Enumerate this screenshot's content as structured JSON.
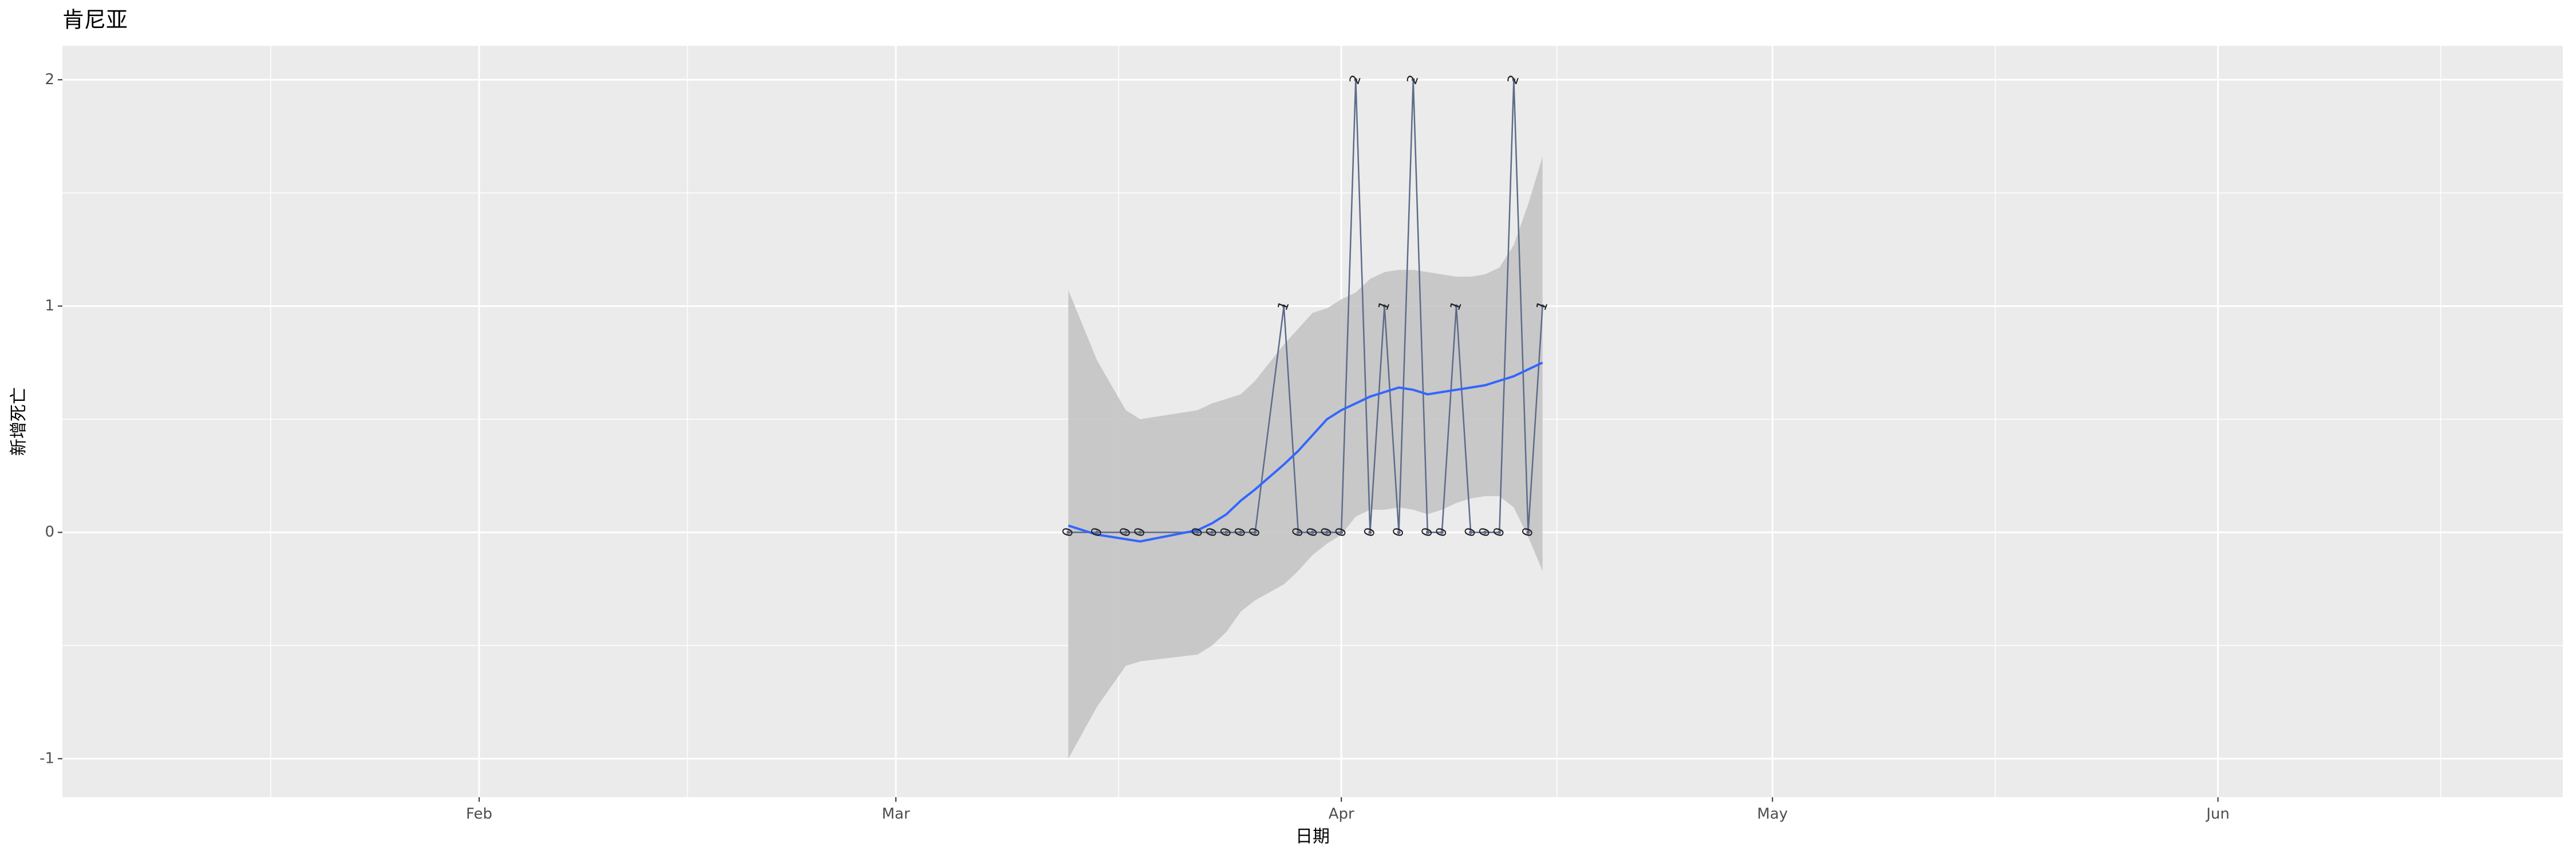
{
  "chart_data": {
    "type": "line",
    "title": "肯尼亚",
    "x_label": "日期",
    "y_label": "新增死亡",
    "x": [
      "03-13",
      "03-15",
      "03-17",
      "03-18",
      "03-22",
      "03-23",
      "03-24",
      "03-25",
      "03-26",
      "03-28",
      "03-29",
      "03-30",
      "03-31",
      "04-01",
      "04-02",
      "04-03",
      "04-04",
      "04-05",
      "04-06",
      "04-07",
      "04-08",
      "04-09",
      "04-10",
      "04-11",
      "04-12",
      "04-13",
      "04-14",
      "04-15"
    ],
    "values": [
      0,
      0,
      0,
      0,
      0,
      0,
      0,
      0,
      0,
      1,
      0,
      0,
      0,
      0,
      2,
      0,
      1,
      0,
      2,
      0,
      0,
      1,
      0,
      0,
      0,
      2,
      0,
      1
    ],
    "color": "#5d6b8a",
    "smooth": {
      "color": "#3366ff",
      "band_color": "#c4c4c4",
      "values": [
        0.03,
        -0.01,
        -0.03,
        -0.04,
        0.01,
        0.04,
        0.08,
        0.14,
        0.19,
        0.3,
        0.36,
        0.43,
        0.5,
        0.54,
        0.57,
        0.6,
        0.62,
        0.64,
        0.63,
        0.61,
        0.62,
        0.63,
        0.64,
        0.65,
        0.67,
        0.69,
        0.72,
        0.75
      ],
      "lower": [
        -1.0,
        -0.77,
        -0.59,
        -0.57,
        -0.54,
        -0.5,
        -0.44,
        -0.35,
        -0.3,
        -0.23,
        -0.17,
        -0.1,
        -0.05,
        -0.01,
        0.07,
        0.1,
        0.1,
        0.11,
        0.1,
        0.08,
        0.1,
        0.13,
        0.15,
        0.16,
        0.16,
        0.11,
        -0.02,
        -0.17
      ],
      "upper": [
        1.07,
        0.76,
        0.54,
        0.5,
        0.54,
        0.57,
        0.59,
        0.61,
        0.67,
        0.83,
        0.9,
        0.97,
        0.99,
        1.03,
        1.06,
        1.12,
        1.15,
        1.16,
        1.16,
        1.15,
        1.14,
        1.13,
        1.13,
        1.14,
        1.17,
        1.27,
        1.45,
        1.66
      ]
    },
    "xlim": [
      "01-03",
      "06-25"
    ],
    "xticks": [
      {
        "value": "02-01",
        "label": "Feb"
      },
      {
        "value": "03-01",
        "label": "Mar"
      },
      {
        "value": "04-01",
        "label": "Apr"
      },
      {
        "value": "05-01",
        "label": "May"
      },
      {
        "value": "06-01",
        "label": "Jun"
      }
    ],
    "ylim": [
      -1.17,
      2.15
    ],
    "yticks": [
      -1,
      0,
      1,
      2
    ],
    "grid": true
  }
}
